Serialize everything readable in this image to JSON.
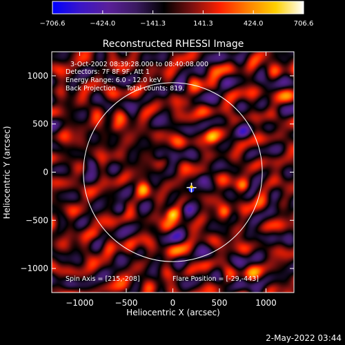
{
  "colorbar": {
    "ticks": [
      "-706.6",
      "-424.0",
      "-141.3",
      "141.3",
      "424.0",
      "706.6"
    ],
    "min": -706.6,
    "max": 706.6,
    "stops": [
      "#0000ff",
      "#3a16c8",
      "#5a1f9a",
      "#3a1a60",
      "#000000",
      "#7a1010",
      "#ff2000",
      "#ff8000",
      "#ffd000",
      "#ffffff"
    ]
  },
  "chart_data": {
    "type": "heatmap",
    "title": "Reconstructed RHESSI Image",
    "xlabel": "Heliocentric X (arcsec)",
    "ylabel": "Heliocentric Y (arcsec)",
    "xlim": [
      -1300,
      1300
    ],
    "ylim": [
      -1250,
      1250
    ],
    "x_ticks": [
      {
        "value": -1000,
        "label": "−1000"
      },
      {
        "value": -500,
        "label": "−500"
      },
      {
        "value": 0,
        "label": "0"
      },
      {
        "value": 500,
        "label": "500"
      },
      {
        "value": 1000,
        "label": "1000"
      }
    ],
    "y_ticks": [
      {
        "value": 1000,
        "label": "1000"
      },
      {
        "value": 500,
        "label": "500"
      },
      {
        "value": 0,
        "label": "0"
      },
      {
        "value": -500,
        "label": "−500"
      },
      {
        "value": -1000,
        "label": "−1000"
      }
    ],
    "solar_limb": {
      "center": [
        0,
        0
      ],
      "radius": 960
    },
    "flare_marker": {
      "x": 200,
      "y": -160
    },
    "source_blobs": [
      {
        "x": -10,
        "y": -430,
        "value": 600
      },
      {
        "x": 560,
        "y": -410,
        "value": 320
      },
      {
        "x": 410,
        "y": 360,
        "value": 380
      },
      {
        "x": -620,
        "y": 470,
        "value": 260
      },
      {
        "x": -320,
        "y": -170,
        "value": 280
      },
      {
        "x": 760,
        "y": -140,
        "value": 300
      },
      {
        "x": -820,
        "y": -650,
        "value": 260
      },
      {
        "x": 160,
        "y": 720,
        "value": 240
      },
      {
        "x": -150,
        "y": 170,
        "value": -360
      },
      {
        "x": 150,
        "y": -370,
        "value": -420
      },
      {
        "x": 320,
        "y": -70,
        "value": -330
      },
      {
        "x": -560,
        "y": -380,
        "value": -300
      },
      {
        "x": 740,
        "y": 420,
        "value": -280
      },
      {
        "x": -100,
        "y": 830,
        "value": -260
      },
      {
        "x": 940,
        "y": -660,
        "value": -240
      },
      {
        "x": -870,
        "y": 90,
        "value": -280
      }
    ]
  },
  "annotations": {
    "time_range": "3-Oct-2002 08:39:28.000 to 08:40:08.000",
    "detectors": "Detectors: 7F 8F 9F, Att 1",
    "energy_range": "Energy Range: 6.0 - 12.0 keV",
    "method": "Back Projection",
    "total_counts": "Total counts: 819.",
    "spin_axis": "Spin Axis = [215,-208]",
    "flare_position": "Flare Position = [-29,-443]"
  },
  "timestamp": "2-May-2022 03:44"
}
